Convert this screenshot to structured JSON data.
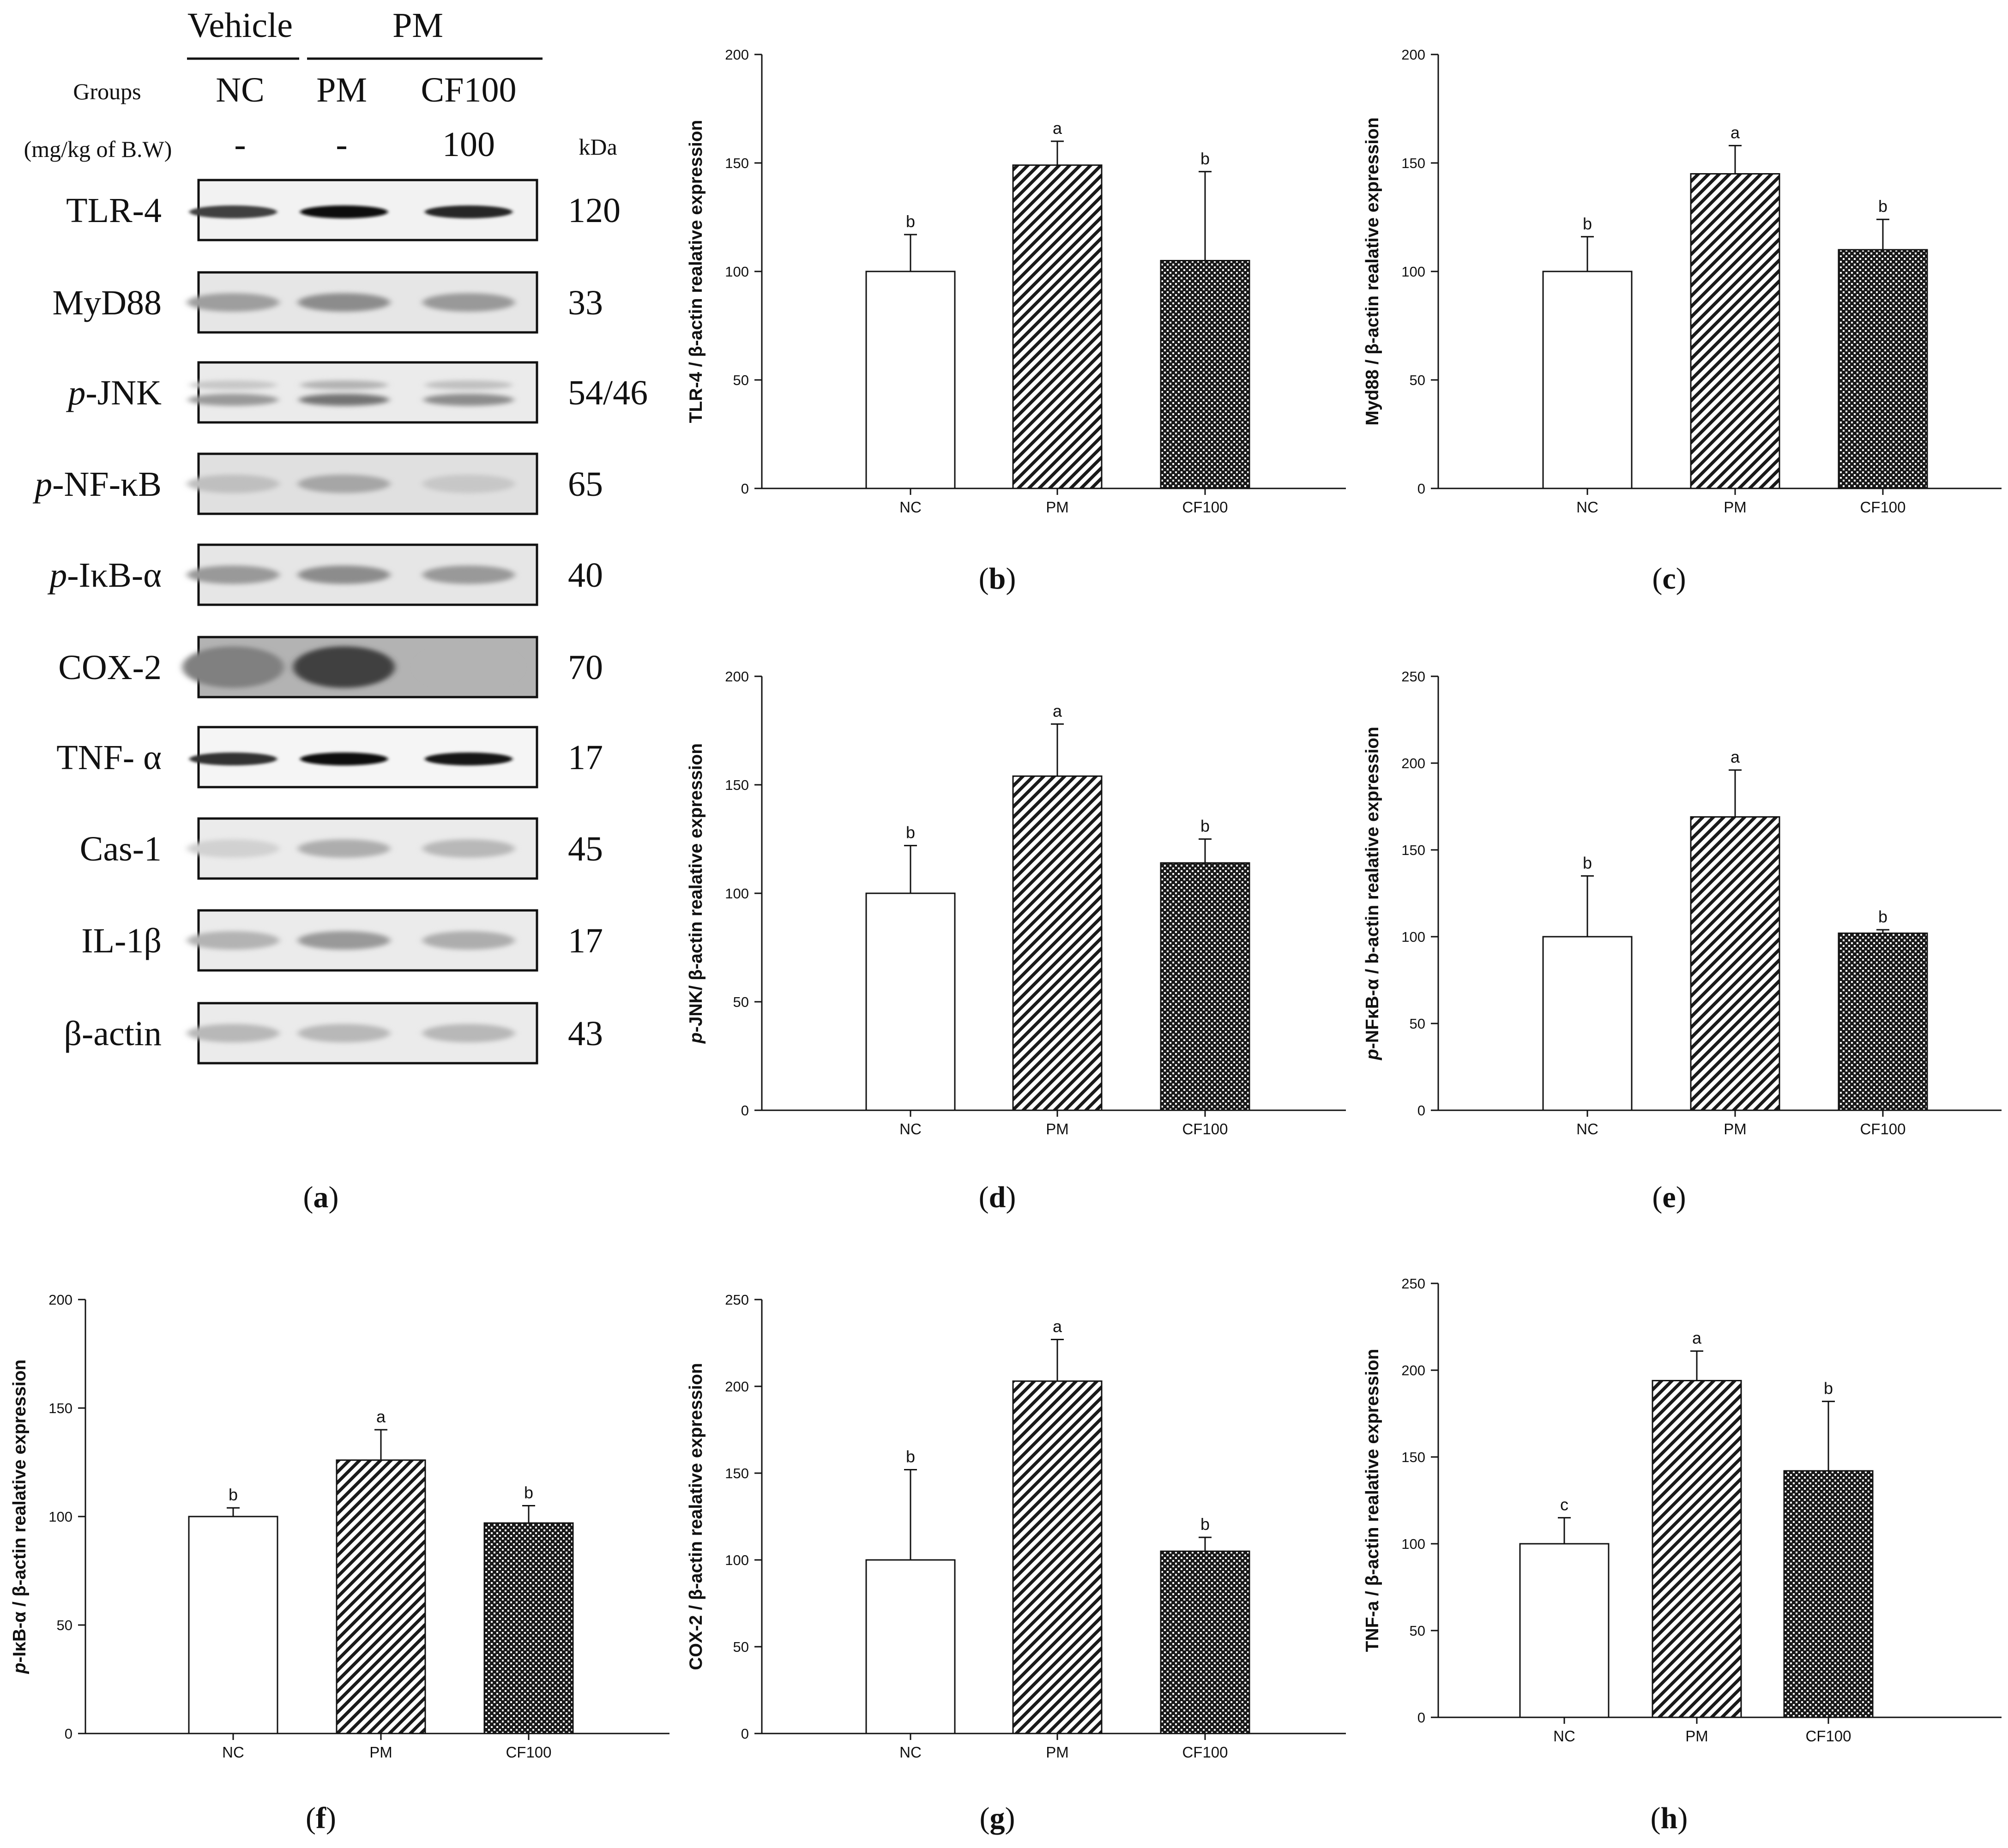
{
  "western_blot": {
    "group_header": {
      "vehicle": "Vehicle",
      "pm": "PM"
    },
    "groups_label": "Groups",
    "dose_label": "(mg/kg of B.W)",
    "kda_label": "kDa",
    "lanes": [
      {
        "name": "NC",
        "dose": "-"
      },
      {
        "name": "PM",
        "dose": "-"
      },
      {
        "name": "CF100",
        "dose": "100"
      }
    ],
    "proteins": [
      {
        "prefix": "",
        "name": "TLR-4",
        "kda": "120",
        "style": "sharp",
        "intensity": [
          0.75,
          0.95,
          0.85
        ],
        "bg": 0.05
      },
      {
        "prefix": "",
        "name": "MyD88",
        "kda": "33",
        "style": "diffuse",
        "intensity": [
          0.38,
          0.45,
          0.4
        ],
        "bg": 0.1
      },
      {
        "prefix": "p",
        "name": "-JNK",
        "kda": "54/46",
        "style": "double",
        "intensity": [
          0.4,
          0.55,
          0.45
        ],
        "bg": 0.08
      },
      {
        "prefix": "p",
        "name": "-NF-κB",
        "kda": "65",
        "style": "diffuse",
        "intensity": [
          0.25,
          0.35,
          0.22
        ],
        "bg": 0.12
      },
      {
        "prefix": "p",
        "name": "-IκB-α",
        "kda": "40",
        "style": "diffuse",
        "intensity": [
          0.4,
          0.45,
          0.4
        ],
        "bg": 0.1
      },
      {
        "prefix": "",
        "name": "COX-2",
        "kda": "70",
        "style": "dark",
        "intensity": [
          0.5,
          0.75,
          0.3
        ],
        "bg": 0.3
      },
      {
        "prefix": "",
        "name": "TNF- α",
        "kda": "17",
        "style": "sharp",
        "intensity": [
          0.8,
          0.95,
          0.9
        ],
        "bg": 0.04
      },
      {
        "prefix": "",
        "name": "Cas-1",
        "kda": "45",
        "style": "diffuse",
        "intensity": [
          0.18,
          0.32,
          0.28
        ],
        "bg": 0.08
      },
      {
        "prefix": "",
        "name": "IL-1β",
        "kda": "17",
        "style": "diffuse",
        "intensity": [
          0.3,
          0.4,
          0.32
        ],
        "bg": 0.08
      },
      {
        "prefix": "",
        "name": "β-actin",
        "kda": "43",
        "style": "diffuse",
        "intensity": [
          0.28,
          0.28,
          0.28
        ],
        "bg": 0.08
      }
    ]
  },
  "panel_labels": {
    "a": "a",
    "b": "b",
    "c": "c",
    "d": "d",
    "e": "e",
    "f": "f",
    "g": "g",
    "h": "h"
  },
  "chart_data": [
    {
      "id": "b",
      "type": "bar",
      "categories": [
        "NC",
        "PM",
        "CF100"
      ],
      "values": [
        100,
        149,
        105
      ],
      "errors": [
        17,
        11,
        41
      ],
      "letters": [
        "b",
        "a",
        "b"
      ],
      "ylim": [
        0,
        200
      ],
      "yticks": [
        0,
        50,
        100,
        150,
        200
      ],
      "ylabel_prefix": "",
      "ylabel": "TLR-4 / β-actin realative expression",
      "xlabel": "",
      "title": ""
    },
    {
      "id": "c",
      "type": "bar",
      "categories": [
        "NC",
        "PM",
        "CF100"
      ],
      "values": [
        100,
        145,
        110
      ],
      "errors": [
        16,
        13,
        14
      ],
      "letters": [
        "b",
        "a",
        "b"
      ],
      "ylim": [
        0,
        200
      ],
      "yticks": [
        0,
        50,
        100,
        150,
        200
      ],
      "ylabel_prefix": "",
      "ylabel": "Myd88 / β-actin realative expression",
      "xlabel": "",
      "title": ""
    },
    {
      "id": "d",
      "type": "bar",
      "categories": [
        "NC",
        "PM",
        "CF100"
      ],
      "values": [
        100,
        154,
        114
      ],
      "errors": [
        22,
        24,
        11
      ],
      "letters": [
        "b",
        "a",
        "b"
      ],
      "ylim": [
        0,
        200
      ],
      "yticks": [
        0,
        50,
        100,
        150,
        200
      ],
      "ylabel_prefix": "p",
      "ylabel": "-JNK/ β-actin realative expression",
      "xlabel": "",
      "title": ""
    },
    {
      "id": "e",
      "type": "bar",
      "categories": [
        "NC",
        "PM",
        "CF100"
      ],
      "values": [
        100,
        169,
        102
      ],
      "errors": [
        35,
        27,
        2
      ],
      "letters": [
        "b",
        "a",
        "b"
      ],
      "ylim": [
        0,
        250
      ],
      "yticks": [
        0,
        50,
        100,
        150,
        200,
        250
      ],
      "ylabel_prefix": "p",
      "ylabel": "-NFκB-α / b-actin realative expression",
      "xlabel": "",
      "title": ""
    },
    {
      "id": "f",
      "type": "bar",
      "categories": [
        "NC",
        "PM",
        "CF100"
      ],
      "values": [
        100,
        126,
        97
      ],
      "errors": [
        4,
        14,
        8
      ],
      "letters": [
        "b",
        "a",
        "b"
      ],
      "ylim": [
        0,
        200
      ],
      "yticks": [
        0,
        50,
        100,
        150,
        200
      ],
      "ylabel_prefix": "p",
      "ylabel": "-IκB-α / β-actin realative expression",
      "xlabel": "",
      "title": ""
    },
    {
      "id": "g",
      "type": "bar",
      "categories": [
        "NC",
        "PM",
        "CF100"
      ],
      "values": [
        100,
        203,
        105
      ],
      "errors": [
        52,
        24,
        8
      ],
      "letters": [
        "b",
        "a",
        "b"
      ],
      "ylim": [
        0,
        250
      ],
      "yticks": [
        0,
        50,
        100,
        150,
        200,
        250
      ],
      "ylabel_prefix": "",
      "ylabel": "COX-2 / β-actin realative expression",
      "xlabel": "",
      "title": ""
    },
    {
      "id": "h",
      "type": "bar",
      "categories": [
        "NC",
        "PM",
        "CF100"
      ],
      "values": [
        100,
        194,
        142
      ],
      "errors": [
        15,
        17,
        40
      ],
      "letters": [
        "c",
        "a",
        "b"
      ],
      "ylim": [
        0,
        250
      ],
      "yticks": [
        0,
        50,
        100,
        150,
        200,
        250
      ],
      "ylabel_prefix": "",
      "ylabel": "TNF-a / β-actin realative expression",
      "xlabel": "",
      "title": ""
    }
  ]
}
